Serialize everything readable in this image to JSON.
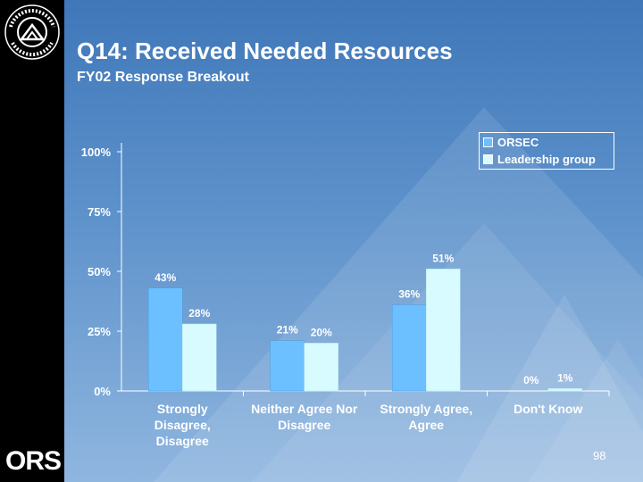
{
  "slide": {
    "title": "Q14:  Received Needed Resources",
    "subtitle": "FY02 Response Breakout",
    "page_number": "98",
    "footer_logo": "ORS",
    "logo_icon": "nih-seal-icon"
  },
  "colors": {
    "orsec": "#6cc0ff",
    "leadership": "#d7fbff",
    "text": "#ffffff"
  },
  "chart_data": {
    "type": "bar",
    "title": "",
    "xlabel": "",
    "ylabel": "",
    "ylim": [
      0,
      100
    ],
    "yticks": [
      "0%",
      "25%",
      "50%",
      "75%",
      "100%"
    ],
    "ytick_values": [
      0,
      25,
      50,
      75,
      100
    ],
    "categories": [
      "Strongly Disagree, Disagree",
      "Neither Agree Nor Disagree",
      "Strongly Agree, Agree",
      "Don't Know"
    ],
    "category_lines": [
      [
        "Strongly",
        "Disagree,",
        "Disagree"
      ],
      [
        "Neither Agree Nor",
        "Disagree"
      ],
      [
        "Strongly Agree,",
        "Agree"
      ],
      [
        "Don't Know"
      ]
    ],
    "series": [
      {
        "name": "ORSEC",
        "values": [
          43,
          21,
          36,
          0
        ],
        "labels": [
          "43%",
          "21%",
          "36%",
          "0%"
        ]
      },
      {
        "name": "Leadership group",
        "values": [
          28,
          20,
          51,
          1
        ],
        "labels": [
          "28%",
          "20%",
          "51%",
          "1%"
        ]
      }
    ],
    "legend_position": "top-right"
  }
}
